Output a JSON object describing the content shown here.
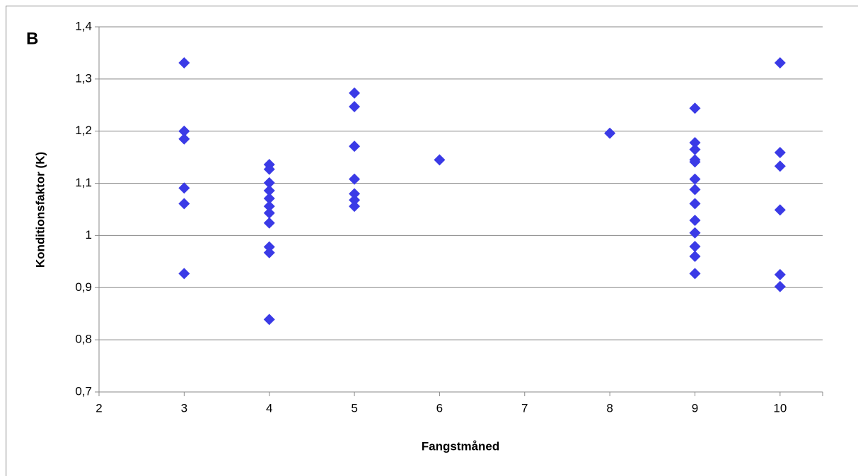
{
  "chart_data": {
    "type": "scatter",
    "label": "B",
    "x_label": "Fangstmåned",
    "y_label": "Konditionsfaktor (K)",
    "color": "#3a3ae6",
    "grid": true,
    "xlim": [
      2,
      10.5
    ],
    "xticks": [
      2,
      3,
      4,
      5,
      6,
      7,
      8,
      9,
      10
    ],
    "ylim": [
      0.7,
      1.4
    ],
    "yticks": [
      {
        "value": 0.7,
        "label": "0,7"
      },
      {
        "value": 0.8,
        "label": "0,8"
      },
      {
        "value": 0.9,
        "label": "0,9"
      },
      1,
      {
        "value": 1.1,
        "label": "1,1"
      },
      {
        "value": 1.2,
        "label": "1,2"
      },
      {
        "value": 1.3,
        "label": "1,3"
      },
      {
        "value": 1.4,
        "label": "1,4"
      }
    ],
    "series": [
      {
        "name": "Konditionsfaktor",
        "x": [
          3,
          3,
          3,
          3,
          3,
          3,
          4,
          4,
          4,
          4,
          4,
          4,
          4,
          4,
          4,
          4,
          4,
          5,
          5,
          5,
          5,
          5,
          5,
          5,
          6,
          8,
          9,
          9,
          9,
          9,
          9,
          9,
          9,
          9,
          9,
          9,
          9,
          9,
          9,
          10,
          10,
          10,
          10,
          10,
          10
        ],
        "values": [
          1.331,
          1.2,
          1.185,
          1.091,
          1.061,
          0.927,
          1.136,
          1.127,
          1.101,
          1.086,
          1.071,
          1.056,
          1.043,
          1.024,
          0.978,
          0.967,
          0.839,
          1.273,
          1.247,
          1.171,
          1.108,
          1.08,
          1.068,
          1.056,
          1.145,
          1.196,
          1.244,
          1.178,
          1.165,
          1.145,
          1.141,
          1.108,
          1.088,
          1.061,
          1.029,
          1.005,
          0.979,
          0.96,
          0.927,
          1.331,
          1.159,
          1.133,
          1.049,
          0.925,
          0.902
        ]
      }
    ]
  }
}
